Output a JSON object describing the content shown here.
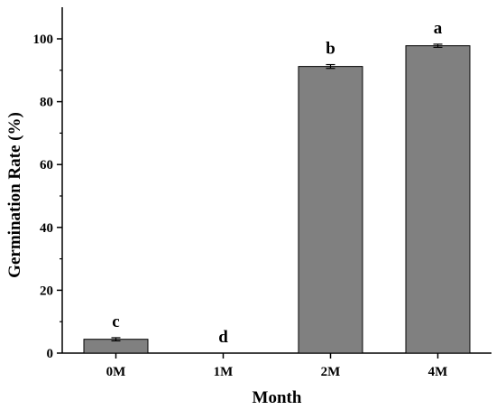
{
  "chart_data": {
    "type": "bar",
    "categories": [
      "0M",
      "1M",
      "2M",
      "4M"
    ],
    "values": [
      4.4,
      0,
      91.2,
      97.8
    ],
    "errors": [
      0.5,
      0,
      0.6,
      0.5
    ],
    "significance": [
      "c",
      "d",
      "b",
      "a"
    ],
    "xlabel": "Month",
    "ylabel": "Germination Rate (%)",
    "ylim": [
      0,
      100
    ],
    "yticks": [
      0,
      20,
      40,
      60,
      80,
      100
    ],
    "grid": false,
    "bar_color": "#808080"
  }
}
